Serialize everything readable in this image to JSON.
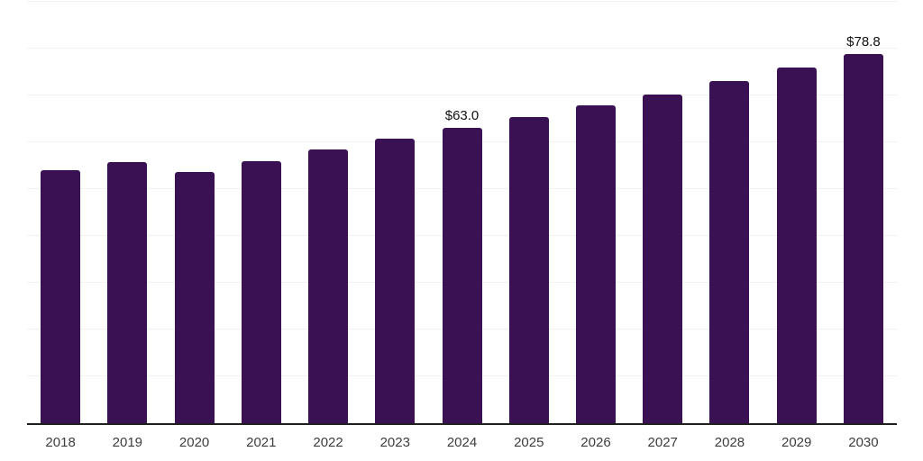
{
  "chart_data": {
    "type": "bar",
    "title": "",
    "xlabel": "",
    "ylabel": "",
    "categories": [
      "2018",
      "2019",
      "2020",
      "2021",
      "2022",
      "2023",
      "2024",
      "2025",
      "2026",
      "2027",
      "2028",
      "2029",
      "2030"
    ],
    "values": [
      54.1,
      55.8,
      53.7,
      56.0,
      58.5,
      60.8,
      63.0,
      65.4,
      67.9,
      70.2,
      73.1,
      76.0,
      78.8
    ],
    "data_labels": [
      "",
      "",
      "",
      "",
      "",
      "",
      "$63.0",
      "",
      "",
      "",
      "",
      "",
      "$78.8"
    ],
    "ylim": [
      0,
      90
    ],
    "grid_step": 10,
    "grid": true,
    "legend": false,
    "colors": {
      "bar": "#3A1254",
      "gridline": "#f2f2f2",
      "axis_line": "#1f1f1f",
      "tick_label": "#3d3d3d",
      "data_label": "#111111",
      "background": "#ffffff"
    }
  }
}
